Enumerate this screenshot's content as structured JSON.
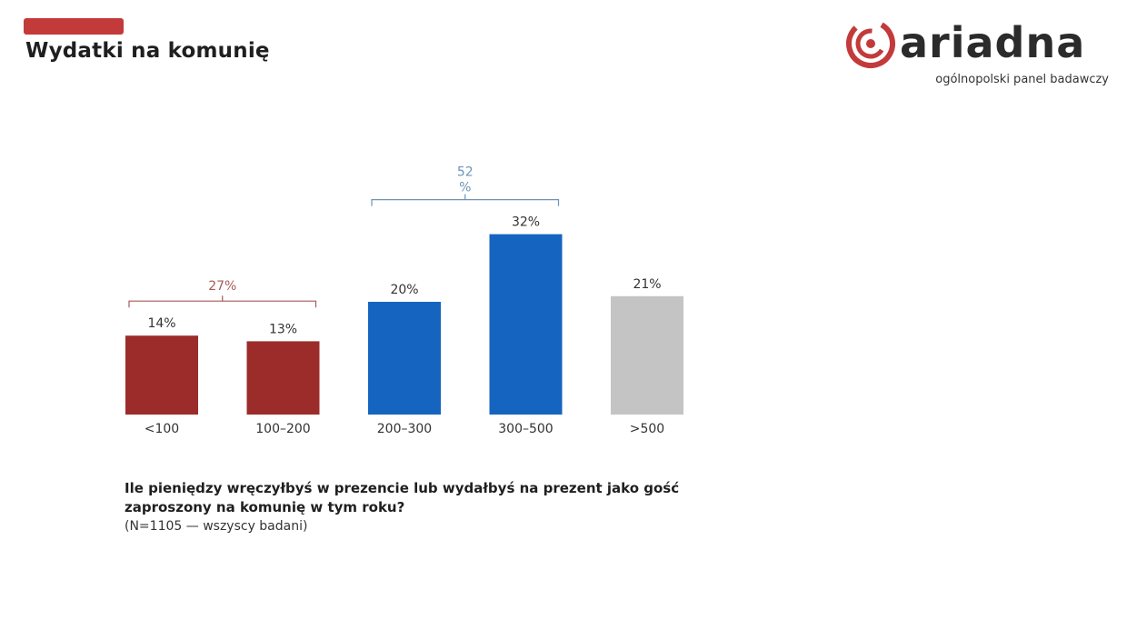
{
  "slide": {
    "title": "Wydatki na komunię",
    "accent_color": "#c33a3a"
  },
  "logo": {
    "wordmark": "ariadna",
    "tagline": "ogólnopolski panel badawczy",
    "icon": "ariadna-spiral-icon",
    "color": "#c33a3a"
  },
  "chart_data": {
    "type": "bar",
    "categories": [
      "<100",
      "100–200",
      "200–300",
      "300–500",
      ">500"
    ],
    "values": [
      14,
      13,
      20,
      32,
      21
    ],
    "value_labels": [
      "14%",
      "13%",
      "20%",
      "32%",
      "21%"
    ],
    "colors": [
      "#9b2c2a",
      "#9b2c2a",
      "#1565c0",
      "#1565c0",
      "#c4c4c4"
    ],
    "title": "",
    "xlabel": "",
    "ylabel": "",
    "ylim": [
      0,
      35
    ],
    "grid": false,
    "groups": [
      {
        "label": "27%",
        "from": 0,
        "to": 1,
        "color": "#a85a5a"
      },
      {
        "label": "52 %",
        "from": 2,
        "to": 3,
        "color": "#6f93b8"
      }
    ]
  },
  "footer": {
    "question_line1": "Ile pieniędzy wręczyłbyś w prezencie lub wydałbyś na prezent jako gość",
    "question_line2": "zaproszony na komunię w tym roku?",
    "sample": "(N=1105 — wszyscy badani)"
  }
}
